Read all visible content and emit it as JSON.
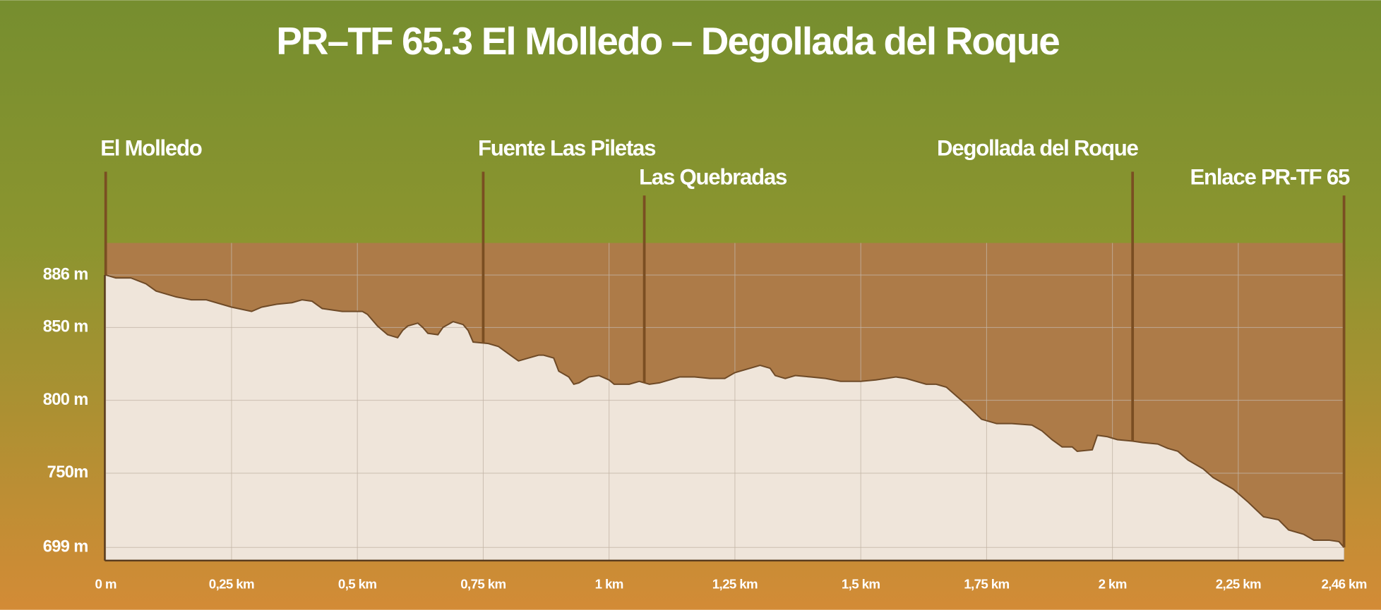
{
  "chart_data": {
    "type": "area",
    "title": "PR–TF 65.3 El Molledo – Degollada del Roque",
    "x": [
      0,
      0.02,
      0.05,
      0.08,
      0.1,
      0.14,
      0.17,
      0.2,
      0.23,
      0.25,
      0.29,
      0.31,
      0.34,
      0.37,
      0.39,
      0.41,
      0.43,
      0.47,
      0.51,
      0.52,
      0.54,
      0.56,
      0.58,
      0.59,
      0.6,
      0.62,
      0.63,
      0.64,
      0.66,
      0.67,
      0.69,
      0.71,
      0.72,
      0.73,
      0.76,
      0.78,
      0.8,
      0.82,
      0.84,
      0.86,
      0.87,
      0.89,
      0.9,
      0.92,
      0.93,
      0.94,
      0.96,
      0.98,
      1.0,
      1.01,
      1.04,
      1.06,
      1.08,
      1.1,
      1.14,
      1.17,
      1.2,
      1.23,
      1.25,
      1.28,
      1.3,
      1.32,
      1.33,
      1.35,
      1.37,
      1.4,
      1.43,
      1.46,
      1.5,
      1.53,
      1.57,
      1.59,
      1.63,
      1.65,
      1.67,
      1.69,
      1.71,
      1.74,
      1.77,
      1.8,
      1.84,
      1.86,
      1.88,
      1.9,
      1.92,
      1.93,
      1.96,
      1.97,
      1.99,
      2.01,
      2.04,
      2.06,
      2.09,
      2.11,
      2.13,
      2.15,
      2.18,
      2.2,
      2.24,
      2.27,
      2.3,
      2.33,
      2.35,
      2.38,
      2.4,
      2.43,
      2.45,
      2.46
    ],
    "values": [
      886,
      884,
      884,
      880,
      875,
      871,
      869,
      869,
      866,
      864,
      861,
      864,
      866,
      867,
      869,
      868,
      863,
      861,
      861,
      859,
      851,
      845,
      843,
      848,
      851,
      853,
      850,
      846,
      845,
      850,
      854,
      852,
      848,
      840,
      839,
      837,
      832,
      827,
      829,
      831,
      831,
      829,
      820,
      816,
      811,
      812,
      816,
      817,
      814,
      811,
      811,
      813,
      811,
      812,
      816,
      816,
      815,
      815,
      819,
      822,
      824,
      822,
      817,
      815,
      817,
      816,
      815,
      813,
      813,
      814,
      816,
      815,
      811,
      811,
      809,
      803,
      797,
      787,
      784,
      784,
      783,
      779,
      773,
      768,
      768,
      765,
      766,
      776,
      775,
      773,
      772,
      771,
      770,
      767,
      765,
      759,
      753,
      747,
      739,
      730,
      720,
      718,
      711,
      708,
      704,
      704,
      703,
      699
    ],
    "xlim": [
      0,
      2.46
    ],
    "ylim": [
      690,
      908
    ],
    "xticks": [
      {
        "value": 0,
        "label": "0 m"
      },
      {
        "value": 0.25,
        "label": "0,25 km"
      },
      {
        "value": 0.5,
        "label": "0,5 km"
      },
      {
        "value": 0.75,
        "label": "0,75 km"
      },
      {
        "value": 1,
        "label": "1 km"
      },
      {
        "value": 1.25,
        "label": "1,25 km"
      },
      {
        "value": 1.5,
        "label": "1,5 km"
      },
      {
        "value": 1.75,
        "label": "1,75 km"
      },
      {
        "value": 2,
        "label": "2 km"
      },
      {
        "value": 2.25,
        "label": "2,25 km"
      },
      {
        "value": 2.46,
        "label": "2,46 km"
      }
    ],
    "yticks": [
      {
        "value": 886,
        "label": "886 m"
      },
      {
        "value": 850,
        "label": "850 m"
      },
      {
        "value": 800,
        "label": "800 m"
      },
      {
        "value": 750,
        "label": "750m"
      },
      {
        "value": 699,
        "label": "699 m"
      }
    ],
    "grid": true,
    "color": "#efe5da",
    "edge_color": "#6e4a27",
    "background_color": "#ad7b48",
    "waypoints": [
      {
        "name": "El Molledo",
        "x": 0
      },
      {
        "name": "Fuente Las Piletas",
        "x": 0.75
      },
      {
        "name": "Las Quebradas",
        "x": 1.07
      },
      {
        "name": "Degollada del Roque",
        "x": 2.04
      },
      {
        "name": "Enlace PR-TF 65",
        "x": 2.46
      }
    ]
  }
}
